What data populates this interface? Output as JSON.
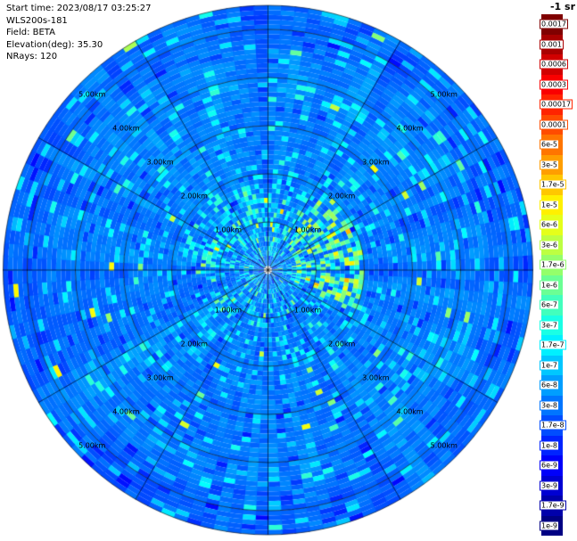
{
  "info": {
    "lines": [
      "Start time: 2023/08/17 03:25:27",
      "WLS200s-181",
      "Field: BETA",
      "Elevation(deg): 35.30",
      "NRays: 120"
    ]
  },
  "chart_data": {
    "type": "heatmap",
    "projection": "polar",
    "instrument": "WLS200s-181",
    "field": "BETA",
    "start_time": "2023/08/17 03:25:27",
    "elevation_deg": 35.3,
    "n_rays": 120,
    "max_range_km": 5.5,
    "range_rings_km": [
      1,
      2,
      3,
      4,
      5
    ],
    "ring_labels": [
      "1.00km",
      "2.00km",
      "3.00km",
      "4.00km",
      "5.00km"
    ],
    "spoke_interval_deg": 30,
    "background": "speckled lidar backscatter field, mostly ~1e-5 to 6e-5 (blue) with cyan speckle; enhanced cyan/green/yellow cells up to ~3e-4 within ~2 km of center, strongest east-northeast of center near 1-1.7 km",
    "colorbar": {
      "title": "-1 sr",
      "orientation": "vertical",
      "scale": "log",
      "colormap": "jet",
      "ticks": [
        "0.0017",
        "0.001",
        "0.0006",
        "0.0003",
        "0.00017",
        "0.0001",
        "6e-5",
        "3e-5",
        "1.7e-5",
        "1e-5",
        "6e-6",
        "3e-6",
        "1.7e-6",
        "1e-6",
        "6e-7",
        "3e-7",
        "1.7e-7",
        "1e-7",
        "6e-8",
        "3e-8",
        "1.7e-8",
        "1e-8",
        "6e-9",
        "3e-9",
        "1.7e-9",
        "1e-9"
      ],
      "stops": [
        [
          0,
          "#000083"
        ],
        [
          0.125,
          "#0000ff"
        ],
        [
          0.375,
          "#00ffff"
        ],
        [
          0.625,
          "#ffff00"
        ],
        [
          0.875,
          "#ff0000"
        ],
        [
          1,
          "#800000"
        ]
      ]
    },
    "render": {
      "seed": 1337,
      "n_gates": 55,
      "base_t": 0.25,
      "hotspots": [
        {
          "az": 15,
          "az_halfwidth": 40,
          "r0": 0.55,
          "r1": 2.0,
          "p": 0.45,
          "boost": 0.22
        },
        {
          "az": 80,
          "az_halfwidth": 30,
          "r0": 0.6,
          "r1": 1.7,
          "p": 0.3,
          "boost": 0.15
        },
        {
          "az": 150,
          "az_halfwidth": 26,
          "r0": 0.9,
          "r1": 1.9,
          "p": 0.22,
          "boost": 0.13
        },
        {
          "az": 235,
          "az_halfwidth": 24,
          "r0": 0.5,
          "r1": 1.4,
          "p": 0.15,
          "boost": 0.1
        }
      ]
    }
  }
}
